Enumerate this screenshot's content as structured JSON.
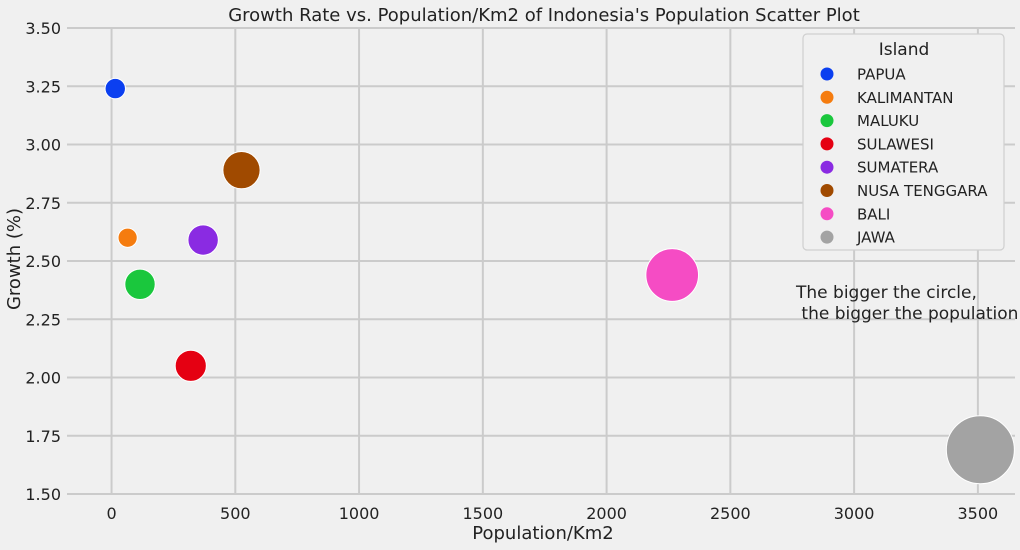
{
  "chart_data": {
    "type": "scatter",
    "title": "Growth Rate vs. Population/Km2 of Indonesia's Population Scatter Plot",
    "xlabel": "Population/Km2",
    "ylabel": "Growth (%)",
    "xlim": [
      -180,
      3650
    ],
    "ylim": [
      1.5,
      3.5
    ],
    "x_ticks": [
      0,
      500,
      1000,
      1500,
      2000,
      2500,
      3000,
      3500
    ],
    "x_tick_labels": [
      "0",
      "500",
      "1000",
      "1500",
      "2000",
      "2500",
      "3000",
      "3500"
    ],
    "y_ticks": [
      1.5,
      1.75,
      2.0,
      2.25,
      2.5,
      2.75,
      3.0,
      3.25,
      3.5
    ],
    "y_tick_labels": [
      "1.50",
      "1.75",
      "2.00",
      "2.25",
      "2.50",
      "2.75",
      "3.00",
      "3.25",
      "3.50"
    ],
    "grid": true,
    "legend": {
      "title": "Island",
      "placement": "top-right"
    },
    "series": [
      {
        "name": "PAPUA",
        "x": 15,
        "y": 3.24,
        "size_rel": 0.09,
        "color": "#0b3ff0"
      },
      {
        "name": "KALIMANTAN",
        "x": 65,
        "y": 2.6,
        "size_rel": 0.08,
        "color": "#f57c0f"
      },
      {
        "name": "MALUKU",
        "x": 115,
        "y": 2.4,
        "size_rel": 0.2,
        "color": "#1ac73d"
      },
      {
        "name": "SULAWESI",
        "x": 320,
        "y": 2.05,
        "size_rel": 0.21,
        "color": "#e50012"
      },
      {
        "name": "SUMATERA",
        "x": 370,
        "y": 2.59,
        "size_rel": 0.2,
        "color": "#8a2be2"
      },
      {
        "name": "NUSA TENGGARA",
        "x": 525,
        "y": 2.89,
        "size_rel": 0.3,
        "color": "#a04a00"
      },
      {
        "name": "BALI",
        "x": 2265,
        "y": 2.44,
        "size_rel": 0.6,
        "color": "#f54cc4"
      },
      {
        "name": "JAWA",
        "x": 3510,
        "y": 1.69,
        "size_rel": 1.0,
        "color": "#a3a3a3"
      }
    ],
    "annotation": [
      "The bigger the circle,",
      " the bigger the population."
    ]
  }
}
